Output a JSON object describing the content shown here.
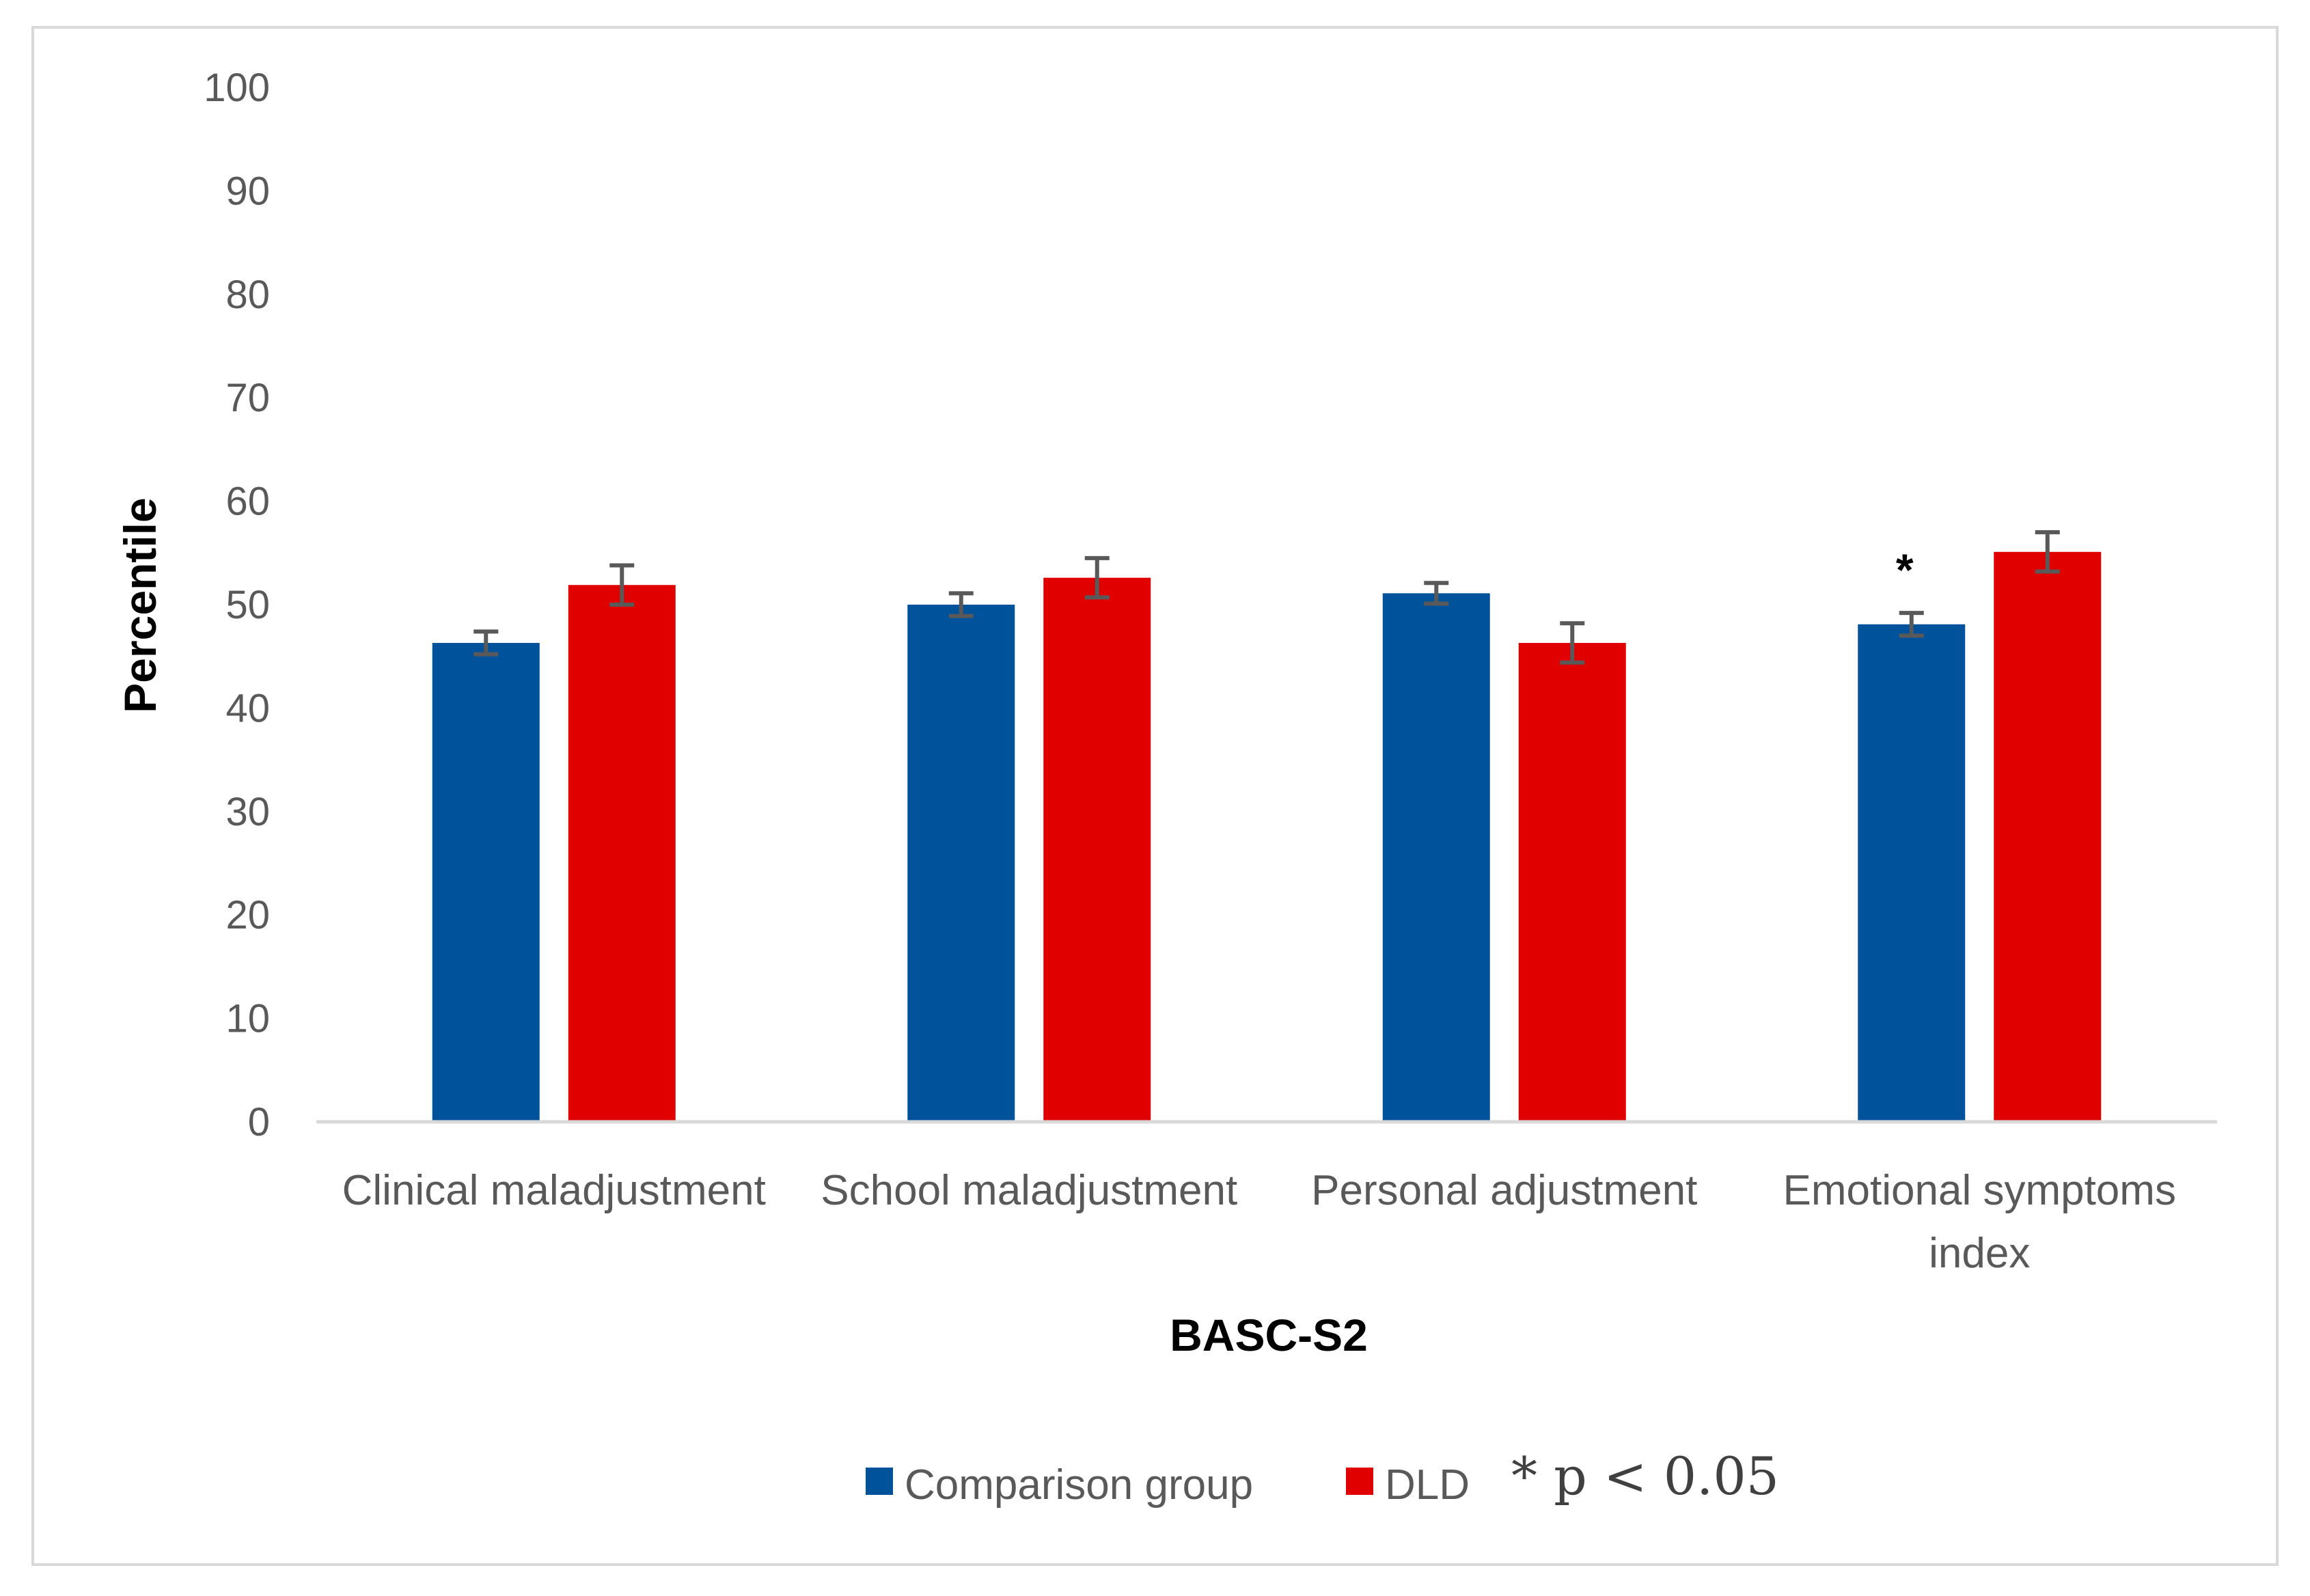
{
  "chart_data": {
    "type": "bar",
    "title": "",
    "xlabel": "BASC-S2",
    "ylabel": "Percentile",
    "ylim": [
      0,
      100
    ],
    "yticks": [
      "0",
      "10",
      "20",
      "30",
      "40",
      "50",
      "60",
      "70",
      "80",
      "90",
      "100"
    ],
    "grid": false,
    "categories": [
      [
        "Clinical maladjustment"
      ],
      [
        "School maladjustment"
      ],
      [
        "Personal adjustment"
      ],
      [
        "Emotional symptoms",
        "index"
      ]
    ],
    "series": [
      {
        "name": "Comparison group",
        "color": "#00529b",
        "values": [
          46.3,
          50.0,
          51.1,
          48.1
        ],
        "errors": [
          1.1,
          1.1,
          1.0,
          1.1
        ]
      },
      {
        "name": "DLD",
        "color": "#e00000",
        "values": [
          51.9,
          52.6,
          46.3,
          55.1
        ],
        "errors": [
          1.9,
          1.9,
          1.9,
          1.9
        ]
      }
    ],
    "error_bar_color": "#595959",
    "significance_marks": [
      {
        "category_index": 3,
        "series_index": 0,
        "symbol": "*"
      }
    ],
    "annotation": "* p < 0.05",
    "legend_position": "bottom"
  }
}
